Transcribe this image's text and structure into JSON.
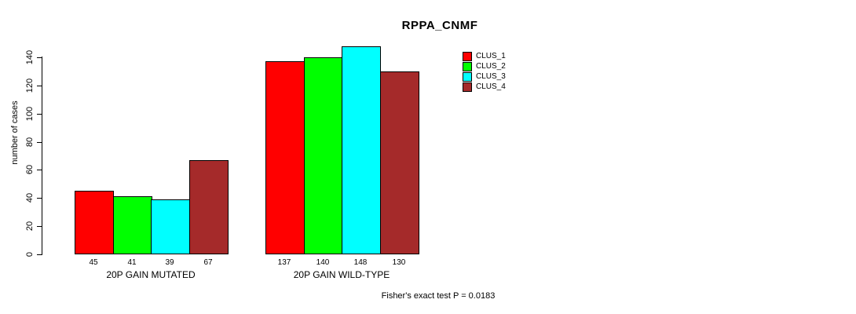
{
  "title": "RPPA_CNMF",
  "footer": "Fisher's exact test P = 0.0183",
  "y_axis": {
    "label": "number of cases",
    "ticks": [
      0,
      20,
      40,
      60,
      80,
      100,
      120,
      140
    ]
  },
  "legend": {
    "entries": [
      {
        "label": "CLUS_1",
        "color": "#FF0000"
      },
      {
        "label": "CLUS_2",
        "color": "#00FF00"
      },
      {
        "label": "CLUS_3",
        "color": "#00FFFF"
      },
      {
        "label": "CLUS_4",
        "color": "#A52A2A"
      }
    ]
  },
  "chart_data": {
    "type": "bar",
    "title": "RPPA_CNMF",
    "xlabel": "",
    "ylabel": "number of cases",
    "ylim": [
      0,
      140
    ],
    "yticks": [
      0,
      20,
      40,
      60,
      80,
      100,
      120,
      140
    ],
    "grid": false,
    "legend_position": "top-right",
    "categories": [
      "20P GAIN MUTATED",
      "20P GAIN WILD-TYPE"
    ],
    "series": [
      {
        "name": "CLUS_1",
        "color": "#FF0000",
        "values": [
          45,
          137
        ]
      },
      {
        "name": "CLUS_2",
        "color": "#00FF00",
        "values": [
          41,
          140
        ]
      },
      {
        "name": "CLUS_3",
        "color": "#00FFFF",
        "values": [
          39,
          148
        ]
      },
      {
        "name": "CLUS_4",
        "color": "#A52A2A",
        "values": [
          67,
          130
        ]
      }
    ],
    "bar_value_labels": [
      [
        45,
        41,
        39,
        67
      ],
      [
        137,
        140,
        148,
        130
      ]
    ],
    "annotation": "Fisher's exact test P = 0.0183"
  }
}
